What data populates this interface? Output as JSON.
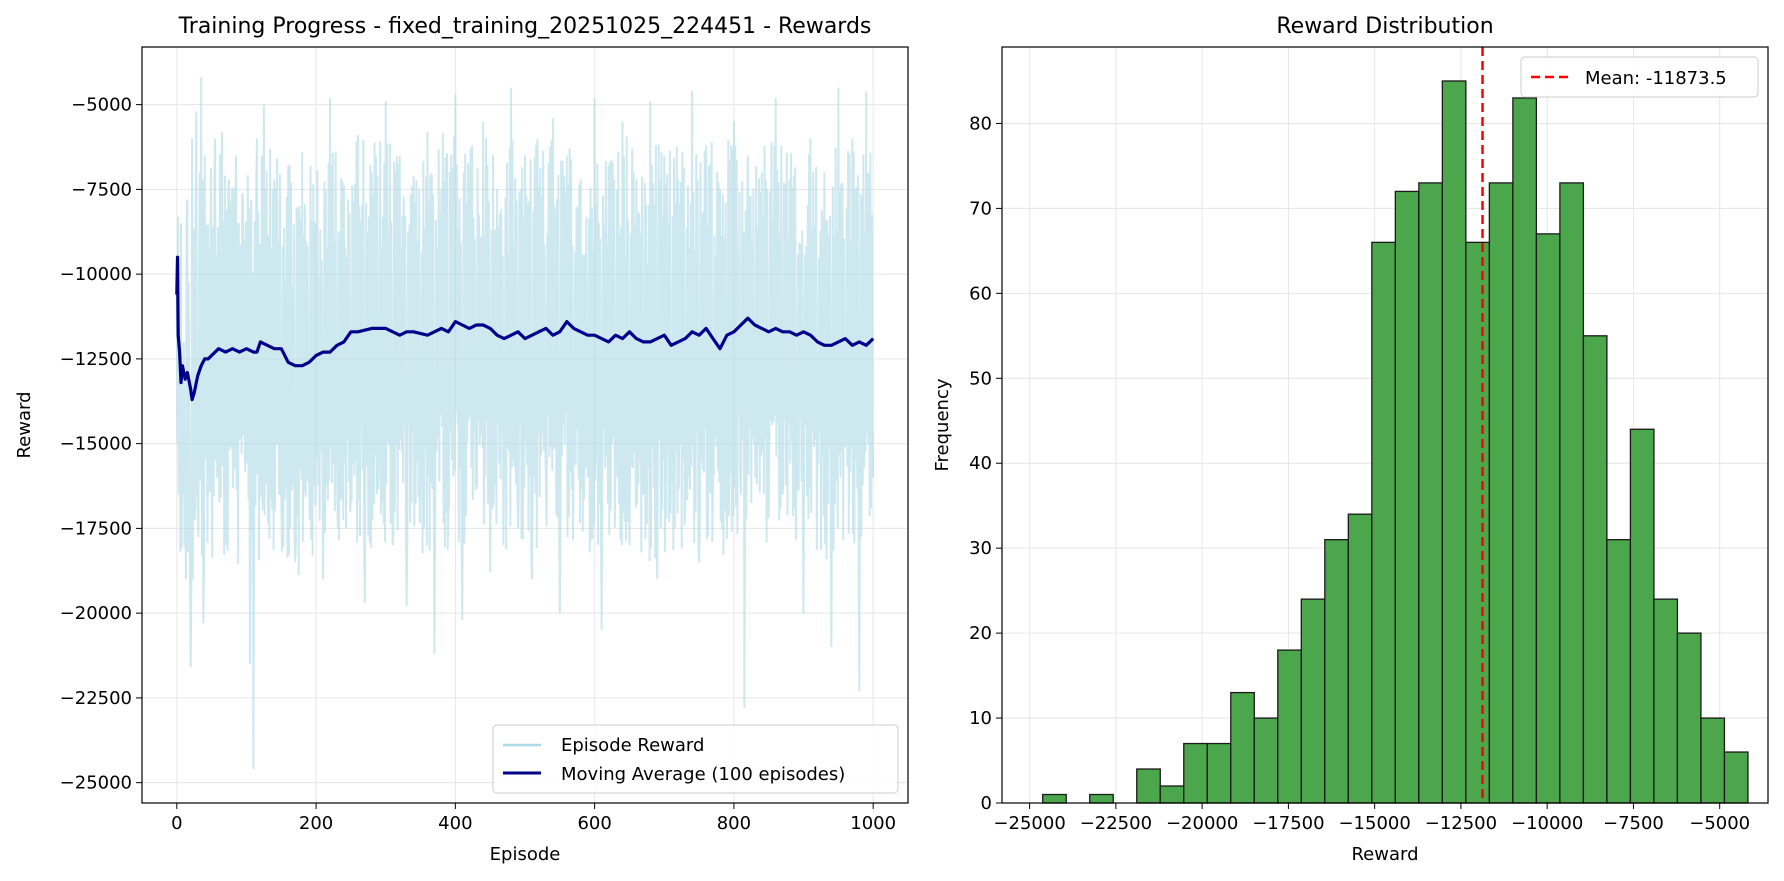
{
  "chart_data": [
    {
      "type": "line",
      "title": "Training Progress - fixed_training_20251025_224451 - Rewards",
      "xlabel": "Episode",
      "ylabel": "Reward",
      "xlim": [
        -50,
        1050
      ],
      "ylim": [
        -25600,
        -3300
      ],
      "xticks": [
        0,
        200,
        400,
        600,
        800,
        1000
      ],
      "xtick_labels": [
        "0",
        "200",
        "400",
        "600",
        "800",
        "1000"
      ],
      "yticks": [
        -25000,
        -22500,
        -20000,
        -17500,
        -15000,
        -12500,
        -10000,
        -7500,
        -5000
      ],
      "ytick_labels": [
        "−25000",
        "−22500",
        "−20000",
        "−17500",
        "−15000",
        "−12500",
        "−10000",
        "−7500",
        "−5000"
      ],
      "grid": true,
      "legend_position": "lower-right",
      "colors": {
        "episode": "#add8e6",
        "moving_average": "#00008b"
      },
      "series": [
        {
          "name": "Episode Reward",
          "noisy": true,
          "x": [
            0,
            1,
            2,
            3,
            4,
            5,
            6,
            8,
            10,
            12,
            15,
            18,
            20,
            22,
            25,
            28,
            30,
            33,
            35,
            38,
            40,
            43,
            45,
            50,
            55,
            60,
            65,
            70,
            75,
            80,
            85,
            90,
            95,
            100,
            105,
            110,
            115,
            120,
            125,
            130,
            140,
            150,
            160,
            170,
            180,
            190,
            200,
            210,
            220,
            230,
            240,
            250,
            260,
            270,
            280,
            290,
            300,
            310,
            320,
            330,
            340,
            350,
            360,
            370,
            380,
            390,
            400,
            410,
            420,
            430,
            440,
            450,
            460,
            470,
            480,
            490,
            500,
            510,
            520,
            530,
            540,
            550,
            560,
            570,
            580,
            590,
            600,
            610,
            620,
            630,
            640,
            650,
            660,
            670,
            680,
            690,
            700,
            710,
            720,
            730,
            740,
            750,
            760,
            770,
            780,
            790,
            800,
            810,
            815,
            820,
            830,
            840,
            850,
            860,
            870,
            880,
            890,
            900,
            910,
            920,
            930,
            940,
            950,
            960,
            970,
            980,
            990,
            1000
          ],
          "values": [
            -10500,
            -15000,
            -8300,
            -16500,
            -9500,
            -18200,
            -8500,
            -14000,
            -12000,
            -16000,
            -7800,
            -15500,
            -21600,
            -6000,
            -15000,
            -5200,
            -17000,
            -7000,
            -4200,
            -20300,
            -6500,
            -13000,
            -8500,
            -16000,
            -6000,
            -14500,
            -5800,
            -18000,
            -7200,
            -15000,
            -6500,
            -13800,
            -8000,
            -14000,
            -21500,
            -24600,
            -6000,
            -16000,
            -5000,
            -14000,
            -7200,
            -16500,
            -6800,
            -18500,
            -6400,
            -16000,
            -8500,
            -19000,
            -4800,
            -15000,
            -7400,
            -16500,
            -5900,
            -19700,
            -7000,
            -15500,
            -4900,
            -18000,
            -6500,
            -19800,
            -7100,
            -15800,
            -5800,
            -21200,
            -7500,
            -17000,
            -4700,
            -20200,
            -6800,
            -16000,
            -5500,
            -18800,
            -7500,
            -15200,
            -4500,
            -17500,
            -6500,
            -19000,
            -7400,
            -16200,
            -5400,
            -20000,
            -6500,
            -15000,
            -7200,
            -16000,
            -4800,
            -20500,
            -6800,
            -15500,
            -5500,
            -18000,
            -7200,
            -16500,
            -4900,
            -19000,
            -6500,
            -15500,
            -7200,
            -17000,
            -4600,
            -18500,
            -6200,
            -16000,
            -7500,
            -17800,
            -5500,
            -16500,
            -22800,
            -6500,
            -14500,
            -7000,
            -17200,
            -4800,
            -16500,
            -7200,
            -15500,
            -20000,
            -6000,
            -14500,
            -7000,
            -21000,
            -4500,
            -15000,
            -6000,
            -22300,
            -4600,
            -16000
          ]
        },
        {
          "name": "Moving Average (100 episodes)",
          "x": [
            0,
            1,
            2,
            4,
            6,
            8,
            10,
            12,
            15,
            18,
            20,
            22,
            25,
            28,
            30,
            35,
            40,
            45,
            50,
            60,
            70,
            80,
            90,
            100,
            110,
            115,
            120,
            130,
            140,
            150,
            160,
            170,
            180,
            190,
            200,
            210,
            220,
            230,
            240,
            250,
            260,
            280,
            300,
            320,
            330,
            340,
            360,
            380,
            390,
            400,
            410,
            420,
            430,
            440,
            450,
            460,
            470,
            480,
            490,
            500,
            510,
            520,
            530,
            540,
            550,
            560,
            570,
            580,
            590,
            600,
            610,
            620,
            630,
            640,
            650,
            660,
            670,
            680,
            690,
            700,
            710,
            720,
            730,
            740,
            750,
            760,
            770,
            780,
            790,
            800,
            810,
            820,
            830,
            840,
            850,
            860,
            870,
            880,
            890,
            900,
            910,
            920,
            930,
            940,
            950,
            960,
            970,
            980,
            990,
            1000
          ],
          "values": [
            -10600,
            -9500,
            -11800,
            -12300,
            -13200,
            -12700,
            -12900,
            -13100,
            -12900,
            -13200,
            -13400,
            -13700,
            -13500,
            -13200,
            -13000,
            -12700,
            -12500,
            -12500,
            -12400,
            -12200,
            -12300,
            -12200,
            -12300,
            -12200,
            -12300,
            -12300,
            -12000,
            -12100,
            -12200,
            -12200,
            -12600,
            -12700,
            -12700,
            -12600,
            -12400,
            -12300,
            -12300,
            -12100,
            -12000,
            -11700,
            -11700,
            -11600,
            -11600,
            -11800,
            -11700,
            -11700,
            -11800,
            -11600,
            -11700,
            -11400,
            -11500,
            -11600,
            -11500,
            -11500,
            -11600,
            -11800,
            -11900,
            -11800,
            -11700,
            -11900,
            -11800,
            -11700,
            -11600,
            -11800,
            -11700,
            -11400,
            -11600,
            -11700,
            -11800,
            -11800,
            -11900,
            -12000,
            -11800,
            -11900,
            -11700,
            -11900,
            -12000,
            -12000,
            -11900,
            -11800,
            -12100,
            -12000,
            -11900,
            -11700,
            -11800,
            -11600,
            -11900,
            -12200,
            -11800,
            -11700,
            -11500,
            -11300,
            -11500,
            -11600,
            -11700,
            -11600,
            -11700,
            -11700,
            -11800,
            -11700,
            -11800,
            -12000,
            -12100,
            -12100,
            -12000,
            -11900,
            -12100,
            -12000,
            -12100,
            -11900
          ]
        }
      ]
    },
    {
      "type": "bar",
      "subtype": "histogram",
      "title": "Reward Distribution",
      "xlabel": "Reward",
      "ylabel": "Frequency",
      "xlim": [
        -25800,
        -3600
      ],
      "ylim": [
        0,
        89
      ],
      "xticks": [
        -25000,
        -22500,
        -20000,
        -17500,
        -15000,
        -12500,
        -10000,
        -7500,
        -5000
      ],
      "xtick_labels": [
        "−25000",
        "−22500",
        "−20000",
        "−17500",
        "−15000",
        "−12500",
        "−10000",
        "−7500",
        "−5000"
      ],
      "yticks": [
        0,
        10,
        20,
        30,
        40,
        50,
        60,
        70,
        80
      ],
      "ytick_labels": [
        "0",
        "10",
        "20",
        "30",
        "40",
        "50",
        "60",
        "70",
        "80"
      ],
      "grid": true,
      "legend_position": "upper-right",
      "colors": {
        "bar": "#4ca64c",
        "edge": "#1a1a1a",
        "mean": "#ff0000"
      },
      "bin_start": -24620,
      "bin_width": 681.3,
      "values": [
        1,
        0,
        1,
        0,
        4,
        2,
        7,
        7,
        13,
        10,
        18,
        24,
        31,
        34,
        66,
        72,
        73,
        85,
        66,
        73,
        83,
        67,
        73,
        55,
        31,
        44,
        24,
        20,
        10,
        6
      ],
      "mean": -11873.5,
      "mean_label": "Mean: -11873.5"
    }
  ]
}
